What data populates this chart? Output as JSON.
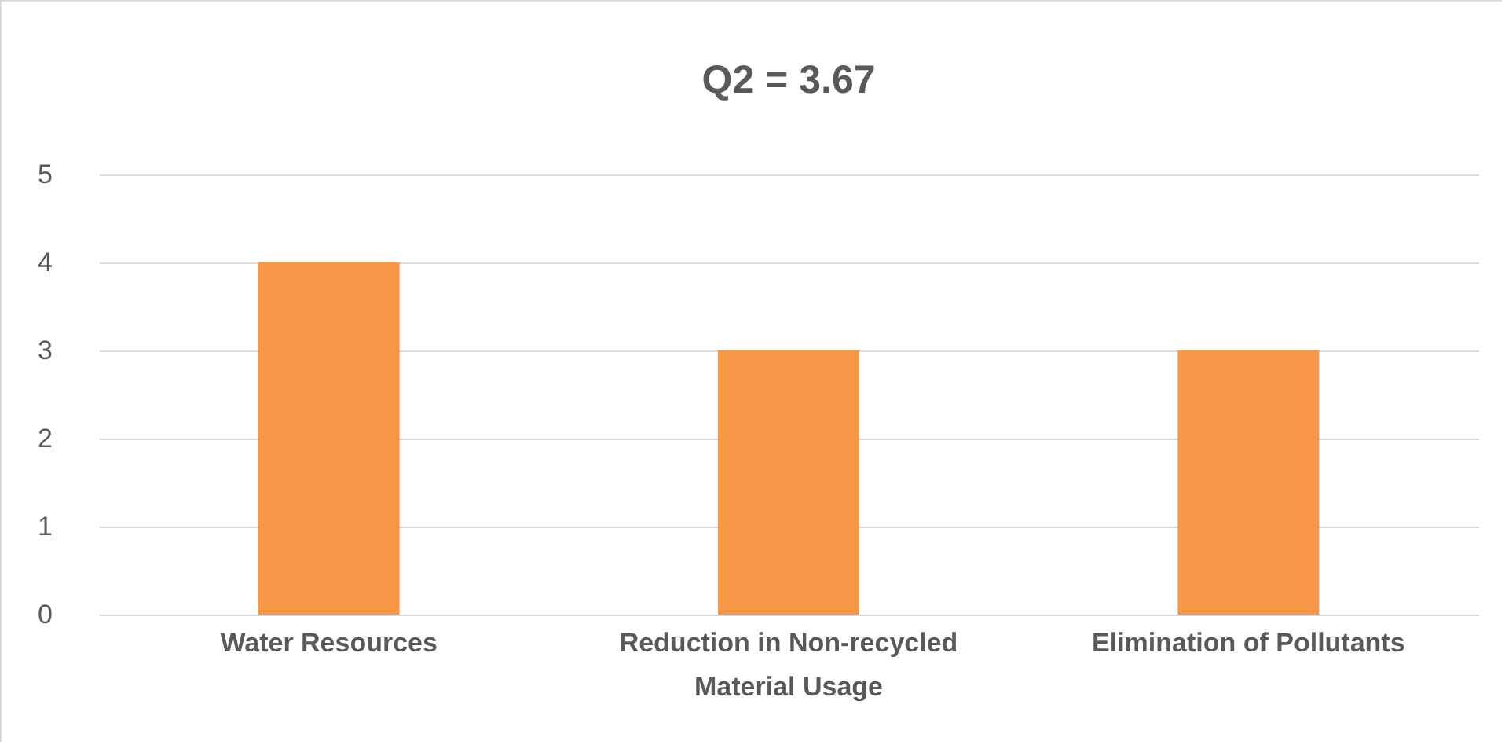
{
  "chart_data": {
    "type": "bar",
    "title": "Q2 = 3.67",
    "categories": [
      "Water Resources",
      "Reduction in Non-recycled Material Usage",
      "Elimination of Pollutants"
    ],
    "values": [
      4,
      3,
      3
    ],
    "color": "#f79646",
    "ylim": [
      0,
      5
    ],
    "yticks": [
      0,
      1,
      2,
      3,
      4,
      5
    ],
    "grid": "y"
  }
}
